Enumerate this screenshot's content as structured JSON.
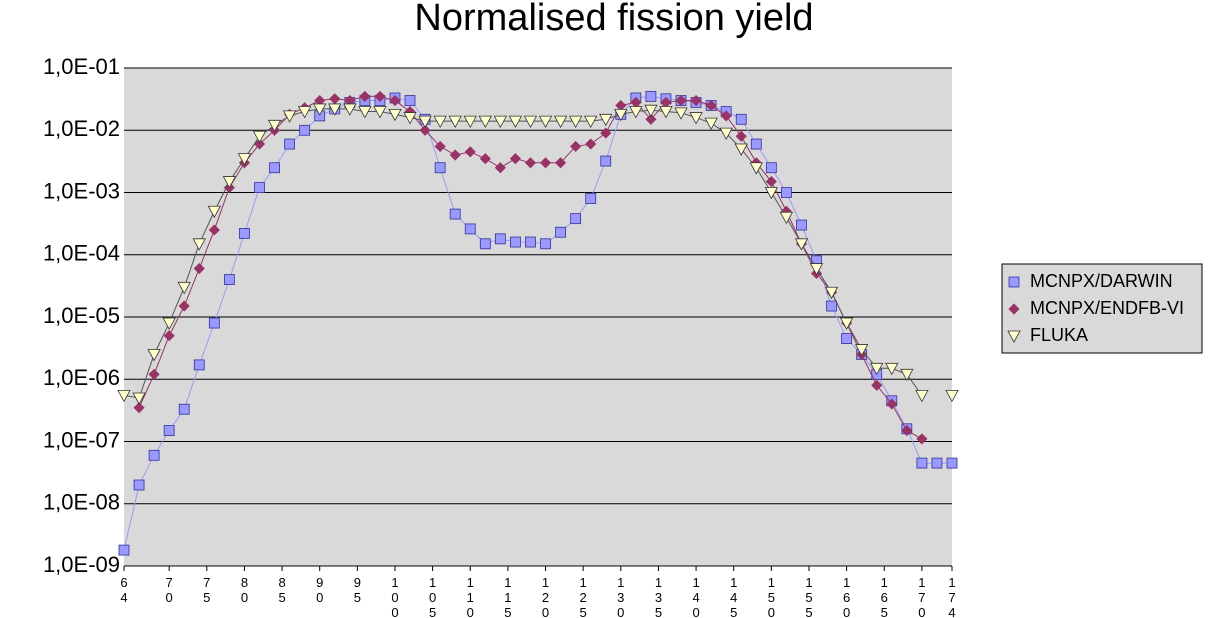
{
  "chart_data": {
    "type": "line",
    "title": "Normalised fission yield",
    "log_y": true,
    "grid": true,
    "legend": "right",
    "xlim": [
      64,
      174
    ],
    "ylim": [
      1e-09,
      0.1
    ],
    "xticks": [
      64,
      70,
      75,
      80,
      85,
      90,
      95,
      100,
      105,
      110,
      115,
      120,
      125,
      130,
      135,
      140,
      145,
      150,
      155,
      160,
      165,
      170,
      174
    ],
    "yticks": [
      {
        "value": 1e-09,
        "label": "1,0E-09"
      },
      {
        "value": 1e-08,
        "label": "1,0E-08"
      },
      {
        "value": 1e-07,
        "label": "1,0E-07"
      },
      {
        "value": 1e-06,
        "label": "1,0E-06"
      },
      {
        "value": 1e-05,
        "label": "1,0E-05"
      },
      {
        "value": 0.0001,
        "label": "1,0E-04"
      },
      {
        "value": 0.001,
        "label": "1,0E-03"
      },
      {
        "value": 0.01,
        "label": "1,0E-02"
      },
      {
        "value": 0.1,
        "label": "1,0E-01"
      }
    ],
    "x": [
      64,
      66,
      68,
      70,
      72,
      74,
      76,
      78,
      80,
      82,
      84,
      86,
      88,
      90,
      92,
      94,
      96,
      98,
      100,
      102,
      104,
      106,
      108,
      110,
      112,
      114,
      116,
      118,
      120,
      122,
      124,
      126,
      128,
      130,
      132,
      134,
      136,
      138,
      140,
      142,
      144,
      146,
      148,
      150,
      152,
      154,
      156,
      158,
      160,
      162,
      164,
      166,
      168,
      170,
      172,
      174
    ],
    "series": [
      {
        "name": "MCNPX/DARWIN",
        "color": "#9999ff",
        "marker": "square",
        "values": [
          1.8e-09,
          2e-08,
          6e-08,
          1.5e-07,
          3.3e-07,
          1.7e-06,
          8e-06,
          4e-05,
          0.00022,
          0.0012,
          0.0025,
          0.006,
          0.01,
          0.017,
          0.022,
          0.028,
          0.03,
          0.03,
          0.033,
          0.03,
          0.015,
          0.0025,
          0.00045,
          0.00026,
          0.00015,
          0.00018,
          0.00016,
          0.00016,
          0.00015,
          0.00023,
          0.00038,
          0.0008,
          0.0032,
          0.018,
          0.033,
          0.035,
          0.032,
          0.03,
          0.028,
          0.025,
          0.02,
          0.015,
          0.006,
          0.0025,
          0.001,
          0.0003,
          8e-05,
          1.5e-05,
          4.5e-06,
          2.5e-06,
          1.2e-06,
          4.5e-07,
          1.6e-07,
          4.5e-08,
          4.5e-08,
          4.5e-08
        ]
      },
      {
        "name": "MCNPX/ENDFB-VI",
        "color": "#993366",
        "marker": "diamond",
        "values": [
          null,
          3.5e-07,
          1.2e-06,
          5e-06,
          1.5e-05,
          6e-05,
          0.00025,
          0.0012,
          0.003,
          0.006,
          0.01,
          0.018,
          0.023,
          0.03,
          0.032,
          0.03,
          0.035,
          0.035,
          0.03,
          0.02,
          0.01,
          0.0055,
          0.004,
          0.0045,
          0.0035,
          0.0025,
          0.0035,
          0.003,
          0.003,
          0.003,
          0.0055,
          0.006,
          0.009,
          0.025,
          0.028,
          0.015,
          0.028,
          0.03,
          0.03,
          0.025,
          0.017,
          0.008,
          0.003,
          0.0015,
          0.0005,
          0.00015,
          5e-05,
          2.5e-05,
          8e-06,
          2.5e-06,
          8e-07,
          4e-07,
          1.5e-07,
          1.1e-07,
          null,
          null
        ]
      },
      {
        "name": "FLUKA",
        "color": "#ffffcc",
        "marker": "triangle-down",
        "values": [
          5.5e-07,
          5e-07,
          2.5e-06,
          8e-06,
          3e-05,
          0.00015,
          0.0005,
          0.0015,
          0.0035,
          0.008,
          0.012,
          0.017,
          0.02,
          0.022,
          0.022,
          0.022,
          0.02,
          0.02,
          0.018,
          0.016,
          0.014,
          0.014,
          0.014,
          0.014,
          0.014,
          0.014,
          0.014,
          0.014,
          0.014,
          0.014,
          0.014,
          0.014,
          0.015,
          0.018,
          0.02,
          0.021,
          0.02,
          0.019,
          0.016,
          0.013,
          0.009,
          0.005,
          0.0025,
          0.001,
          0.0004,
          0.00015,
          6e-05,
          2.5e-05,
          8e-06,
          3e-06,
          1.5e-06,
          1.5e-06,
          1.2e-06,
          5.5e-07,
          null,
          5.5e-07
        ]
      }
    ]
  }
}
